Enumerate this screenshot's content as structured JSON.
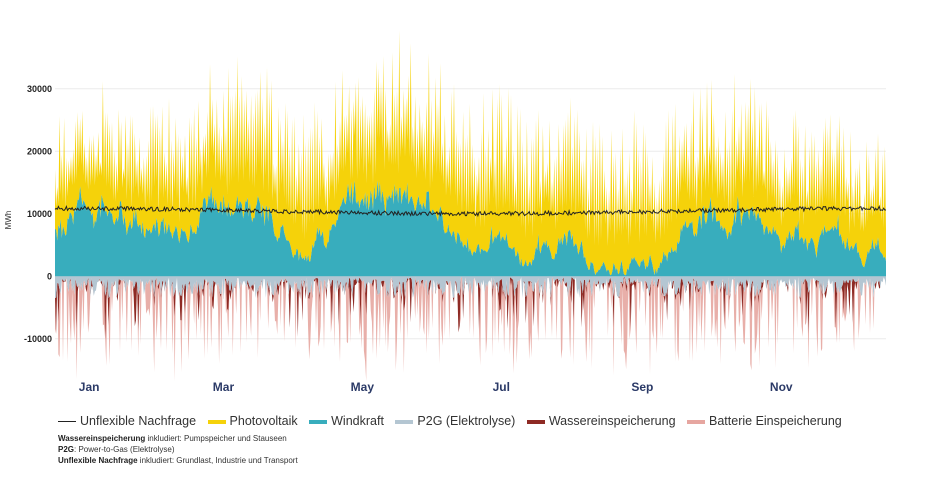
{
  "chart_data": {
    "type": "area",
    "ylabel": "MWh",
    "ylim": [
      -15000,
      33000
    ],
    "yticks": [
      -10000,
      0,
      10000,
      20000,
      30000
    ],
    "ytick_labels": [
      "-10000",
      "0",
      "10000",
      "20000",
      "30000"
    ],
    "x_range_days": [
      0,
      365
    ],
    "xticks": [
      {
        "label": "Jan",
        "day": 15
      },
      {
        "label": "Mar",
        "day": 74
      },
      {
        "label": "May",
        "day": 135
      },
      {
        "label": "Jul",
        "day": 196
      },
      {
        "label": "Sep",
        "day": 258
      },
      {
        "label": "Nov",
        "day": 319
      }
    ],
    "grid": true,
    "legend_position": "bottom",
    "series": [
      {
        "name": "Unflexible Nachfrage",
        "color": "#222222",
        "kind": "line",
        "approx_level": 10000,
        "approx_range": [
          9500,
          11200
        ]
      },
      {
        "name": "Photovoltaik",
        "color": "#f5d20a",
        "kind": "area-positive",
        "approx_peak": 32000
      },
      {
        "name": "Windkraft",
        "color": "#38adbd",
        "kind": "area-positive",
        "approx_peak": 13500
      },
      {
        "name": "P2G (Elektrolyse)",
        "color": "#b4c6d2",
        "kind": "area-negative",
        "approx_min": -3500
      },
      {
        "name": "Wassereinspeicherung",
        "color": "#8e2a24",
        "kind": "area-negative",
        "approx_min": -7500
      },
      {
        "name": "Batterie Einspeicherung",
        "color": "#e6a6a0",
        "kind": "area-negative",
        "approx_min": -12500
      }
    ]
  },
  "notes": [
    {
      "bold": "Wassereinspeicherung",
      "text": " inkludiert: Pumpspeicher und Stauseen"
    },
    {
      "bold": "P2G",
      "text": ": Power-to-Gas (Elektrolyse)"
    },
    {
      "bold": "Unflexible Nachfrage",
      "text": " inkludiert: Grundlast, Industrie und Transport"
    }
  ]
}
